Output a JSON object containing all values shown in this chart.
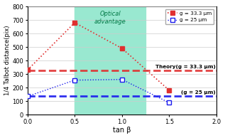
{
  "xlabel": "tan β",
  "ylabel": "1/4 Talbot distance(pix)",
  "xlim": [
    0,
    2
  ],
  "ylim": [
    0,
    800
  ],
  "xticks": [
    0,
    0.5,
    1.0,
    1.5,
    2.0
  ],
  "yticks": [
    0,
    100,
    200,
    300,
    400,
    500,
    600,
    700,
    800
  ],
  "red_x": [
    0,
    0.5,
    1.0,
    1.5
  ],
  "red_y": [
    330,
    680,
    490,
    180
  ],
  "blue_x": [
    0,
    0.5,
    1.0,
    1.5
  ],
  "blue_y": [
    135,
    255,
    260,
    88
  ],
  "theory_red_y": 325,
  "theory_blue_y": 138,
  "shaded_xmin": 0.5,
  "shaded_xmax": 1.25,
  "shaded_color": "#99e8d0",
  "red_color": "#e03030",
  "blue_color": "#1a1aee",
  "legend_labels": [
    "g = 33.3 μm",
    "g = 25 μm"
  ],
  "theory_label_red": "Theory(g = 33.3 μm)",
  "theory_label_blue": "(g = 25 μm)",
  "optical_advantage_label": "Optical\nadvantage",
  "background_color": "#ffffff"
}
